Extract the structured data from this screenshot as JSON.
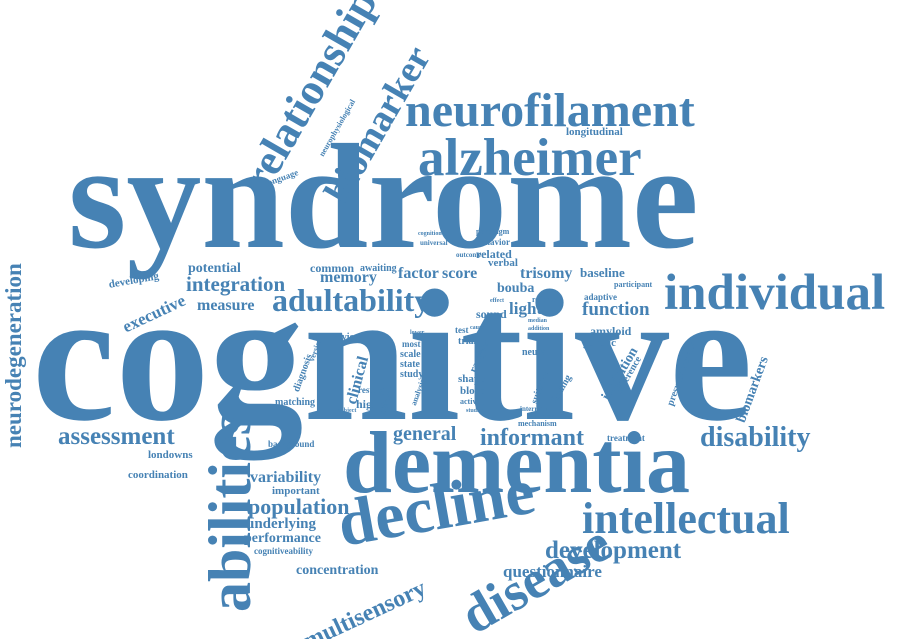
{
  "cloud": {
    "color": "#4682b4",
    "words": [
      {
        "text": "cognitive",
        "weight": 1.0,
        "orient": "h"
      },
      {
        "text": "syndrome",
        "weight": 0.82,
        "orient": "h"
      },
      {
        "text": "dementia",
        "weight": 0.52,
        "orient": "h"
      },
      {
        "text": "neurofilament",
        "weight": 0.36,
        "orient": "h"
      },
      {
        "text": "alzheimer",
        "weight": 0.36,
        "orient": "h"
      },
      {
        "text": "individual",
        "weight": 0.33,
        "orient": "h"
      },
      {
        "text": "decline",
        "weight": 0.34,
        "orient": "h"
      },
      {
        "text": "intellectual",
        "weight": 0.3,
        "orient": "h"
      },
      {
        "text": "adultability",
        "weight": 0.24,
        "orient": "h"
      },
      {
        "text": "relationship",
        "weight": 0.31,
        "orient": "v"
      },
      {
        "text": "biomarker",
        "weight": 0.3,
        "orient": "v"
      },
      {
        "text": "abilities",
        "weight": 0.32,
        "orient": "v"
      },
      {
        "text": "disease",
        "weight": 0.3,
        "orient": "v"
      },
      {
        "text": "neurodegeneration",
        "weight": 0.18,
        "orient": "v"
      },
      {
        "text": "disability",
        "weight": 0.19,
        "orient": "h"
      },
      {
        "text": "assessment",
        "weight": 0.19,
        "orient": "h"
      },
      {
        "text": "development",
        "weight": 0.19,
        "orient": "h"
      },
      {
        "text": "informant",
        "weight": 0.17,
        "orient": "h"
      },
      {
        "text": "general",
        "weight": 0.16,
        "orient": "h"
      },
      {
        "text": "function",
        "weight": 0.14,
        "orient": "h"
      },
      {
        "text": "integration",
        "weight": 0.14,
        "orient": "h"
      },
      {
        "text": "population",
        "weight": 0.14,
        "orient": "h"
      },
      {
        "text": "multisensory",
        "weight": 0.15,
        "orient": "v"
      },
      {
        "text": "memory",
        "weight": 0.12,
        "orient": "h"
      },
      {
        "text": "measure",
        "weight": 0.12,
        "orient": "h"
      },
      {
        "text": "executive",
        "weight": 0.11,
        "orient": "h"
      },
      {
        "text": "potential",
        "weight": 0.11,
        "orient": "h"
      },
      {
        "text": "factor",
        "weight": 0.11,
        "orient": "h"
      },
      {
        "text": "score",
        "weight": 0.11,
        "orient": "h"
      },
      {
        "text": "trisomy",
        "weight": 0.11,
        "orient": "h"
      },
      {
        "text": "questionnaire",
        "weight": 0.12,
        "orient": "h"
      },
      {
        "text": "concentration",
        "weight": 0.1,
        "orient": "h"
      },
      {
        "text": "variability",
        "weight": 0.11,
        "orient": "h"
      },
      {
        "text": "underlying",
        "weight": 0.1,
        "orient": "h"
      },
      {
        "text": "performance",
        "weight": 0.1,
        "orient": "h"
      },
      {
        "text": "light",
        "weight": 0.11,
        "orient": "h"
      },
      {
        "text": "bouba",
        "weight": 0.09,
        "orient": "h"
      },
      {
        "text": "baseline",
        "weight": 0.09,
        "orient": "h"
      },
      {
        "text": "amyloid",
        "weight": 0.08,
        "orient": "h"
      },
      {
        "text": "clinical",
        "weight": 0.09,
        "orient": "v"
      },
      {
        "text": "biomarkers",
        "weight": 0.08,
        "orient": "v"
      },
      {
        "text": "inhibition",
        "weight": 0.09,
        "orient": "v"
      },
      {
        "text": "common",
        "weight": 0.08,
        "orient": "h"
      },
      {
        "text": "related",
        "weight": 0.08,
        "orient": "h"
      },
      {
        "text": "verbal",
        "weight": 0.08,
        "orient": "h"
      },
      {
        "text": "longitudinal",
        "weight": 0.07,
        "orient": "h"
      },
      {
        "text": "londowns",
        "weight": 0.07,
        "orient": "h"
      },
      {
        "text": "coordination",
        "weight": 0.07,
        "orient": "h"
      },
      {
        "text": "important",
        "weight": 0.07,
        "orient": "h"
      },
      {
        "text": "developing",
        "weight": 0.07,
        "orient": "h"
      },
      {
        "text": "awaiting",
        "weight": 0.07,
        "orient": "h"
      },
      {
        "text": "higher",
        "weight": 0.07,
        "orient": "h"
      },
      {
        "text": "blood",
        "weight": 0.07,
        "orient": "h"
      },
      {
        "text": "shape",
        "weight": 0.07,
        "orient": "h"
      },
      {
        "text": "sound",
        "weight": 0.07,
        "orient": "h"
      },
      {
        "text": "genetic",
        "weight": 0.07,
        "orient": "h"
      },
      {
        "text": "neural",
        "weight": 0.07,
        "orient": "h"
      },
      {
        "text": "adaptive",
        "weight": 0.06,
        "orient": "h"
      },
      {
        "text": "review",
        "weight": 0.06,
        "orient": "h"
      },
      {
        "text": "scale",
        "weight": 0.06,
        "orient": "h"
      },
      {
        "text": "state",
        "weight": 0.06,
        "orient": "h"
      },
      {
        "text": "study",
        "weight": 0.06,
        "orient": "h"
      },
      {
        "text": "trial",
        "weight": 0.06,
        "orient": "h"
      },
      {
        "text": "most",
        "weight": 0.06,
        "orient": "h"
      },
      {
        "text": "behavior",
        "weight": 0.06,
        "orient": "h"
      },
      {
        "text": "background",
        "weight": 0.06,
        "orient": "h"
      },
      {
        "text": "matching",
        "weight": 0.06,
        "orient": "h"
      },
      {
        "text": "resting",
        "weight": 0.06,
        "orient": "h"
      },
      {
        "text": "treatment",
        "weight": 0.06,
        "orient": "h"
      },
      {
        "text": "cognitiveability",
        "weight": 0.06,
        "orient": "h"
      },
      {
        "text": "presymptomatic",
        "weight": 0.06,
        "orient": "v"
      },
      {
        "text": "difference",
        "weight": 0.06,
        "orient": "v"
      },
      {
        "text": "diagnosis",
        "weight": 0.06,
        "orient": "v"
      },
      {
        "text": "suitable",
        "weight": 0.06,
        "orient": "v"
      },
      {
        "text": "finding",
        "weight": 0.06,
        "orient": "v"
      },
      {
        "text": "range",
        "weight": 0.06,
        "orient": "v"
      },
      {
        "text": "battery",
        "weight": 0.06,
        "orient": "v"
      },
      {
        "text": "language",
        "weight": 0.06,
        "orient": "h"
      },
      {
        "text": "neurophysiological",
        "weight": 0.05,
        "orient": "v"
      },
      {
        "text": "participant",
        "weight": 0.05,
        "orient": "h"
      },
      {
        "text": "paradigm",
        "weight": 0.05,
        "orient": "h"
      },
      {
        "text": "referee",
        "weight": 0.05,
        "orient": "h"
      },
      {
        "text": "activity",
        "weight": 0.05,
        "orient": "h"
      },
      {
        "text": "mechanism",
        "weight": 0.05,
        "orient": "h"
      },
      {
        "text": "interrater",
        "weight": 0.05,
        "orient": "h"
      },
      {
        "text": "analysis",
        "weight": 0.05,
        "orient": "v"
      },
      {
        "text": "universal",
        "weight": 0.05,
        "orient": "h"
      },
      {
        "text": "cognition",
        "weight": 0.05,
        "orient": "h"
      },
      {
        "text": "outcome",
        "weight": 0.05,
        "orient": "h"
      },
      {
        "text": "lower",
        "weight": 0.05,
        "orient": "h"
      },
      {
        "text": "cause",
        "weight": 0.05,
        "orient": "h"
      },
      {
        "text": "effect",
        "weight": 0.05,
        "orient": "h"
      },
      {
        "text": "change",
        "weight": 0.05,
        "orient": "v"
      },
      {
        "text": "studies",
        "weight": 0.05,
        "orient": "h"
      },
      {
        "text": "intrinsic",
        "weight": 0.05,
        "orient": "h"
      },
      {
        "text": "subject",
        "weight": 0.05,
        "orient": "h"
      },
      {
        "text": "median",
        "weight": 0.05,
        "orient": "h"
      },
      {
        "text": "addition",
        "weight": 0.05,
        "orient": "h"
      },
      {
        "text": "version",
        "weight": 0.05,
        "orient": "v"
      },
      {
        "text": "test",
        "weight": 0.05,
        "orient": "h"
      }
    ]
  }
}
